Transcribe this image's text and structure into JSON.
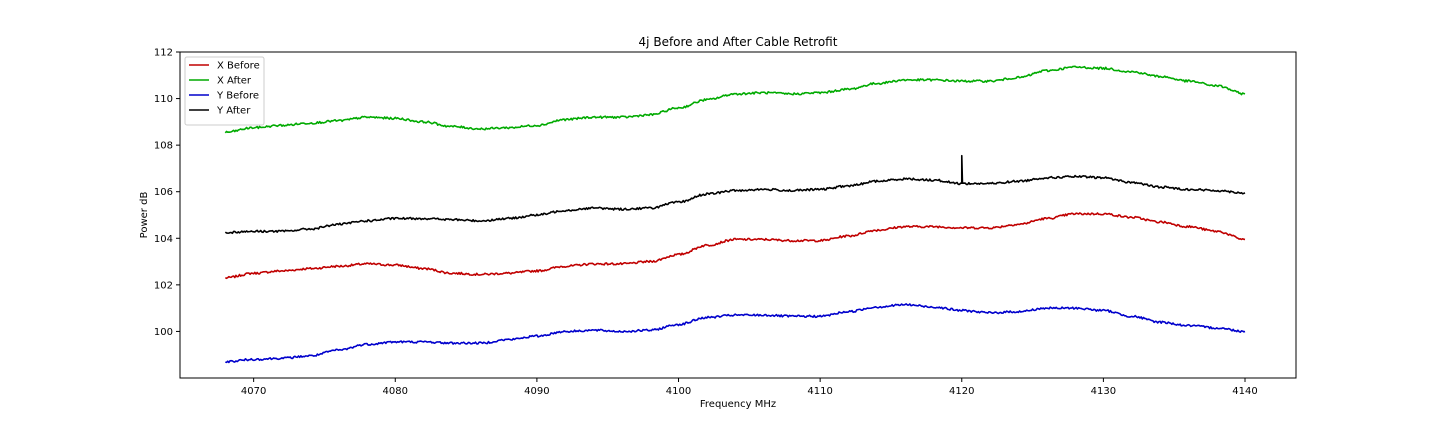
{
  "chart_data": {
    "type": "line",
    "title": "4j Before and After Cable Retrofit",
    "xlabel": "Frequency MHz",
    "ylabel": "Power dB",
    "xlim": [
      4064.8,
      4143.6
    ],
    "ylim": [
      98.0,
      112.0
    ],
    "xticks": [
      4070,
      4080,
      4090,
      4100,
      4110,
      4120,
      4130,
      4140
    ],
    "yticks": [
      100,
      102,
      104,
      106,
      108,
      110,
      112
    ],
    "grid": false,
    "legend_position": "top-left",
    "x": [
      4068,
      4070,
      4072,
      4074,
      4076,
      4078,
      4080,
      4082,
      4084,
      4086,
      4088,
      4090,
      4092,
      4094,
      4096,
      4098,
      4100,
      4102,
      4104,
      4106,
      4108,
      4110,
      4112,
      4114,
      4116,
      4118,
      4120,
      4122,
      4124,
      4126,
      4128,
      4130,
      4132,
      4134,
      4136,
      4138,
      4140
    ],
    "series": [
      {
        "name": "X Before",
        "color": "#c00000",
        "values": [
          102.3,
          102.5,
          102.6,
          102.7,
          102.8,
          102.9,
          102.85,
          102.7,
          102.5,
          102.45,
          102.5,
          102.6,
          102.8,
          102.9,
          102.9,
          103.0,
          103.3,
          103.7,
          103.95,
          103.95,
          103.9,
          103.9,
          104.1,
          104.35,
          104.5,
          104.5,
          104.45,
          104.45,
          104.6,
          104.85,
          105.05,
          105.05,
          104.9,
          104.7,
          104.5,
          104.3,
          103.95
        ]
      },
      {
        "name": "X After",
        "color": "#00aa00",
        "values": [
          108.55,
          108.75,
          108.85,
          108.95,
          109.05,
          109.2,
          109.15,
          109.0,
          108.8,
          108.7,
          108.75,
          108.85,
          109.1,
          109.2,
          109.2,
          109.3,
          109.6,
          109.95,
          110.2,
          110.25,
          110.2,
          110.25,
          110.4,
          110.65,
          110.8,
          110.8,
          110.75,
          110.75,
          110.9,
          111.2,
          111.35,
          111.3,
          111.15,
          110.95,
          110.75,
          110.55,
          110.2
        ]
      },
      {
        "name": "Y Before",
        "color": "#0000cc",
        "values": [
          98.7,
          98.8,
          98.85,
          98.95,
          99.2,
          99.45,
          99.55,
          99.55,
          99.5,
          99.5,
          99.65,
          99.8,
          100.0,
          100.05,
          100.0,
          100.05,
          100.3,
          100.6,
          100.7,
          100.7,
          100.65,
          100.65,
          100.85,
          101.05,
          101.15,
          101.05,
          100.9,
          100.8,
          100.85,
          101.0,
          101.0,
          100.9,
          100.65,
          100.4,
          100.25,
          100.15,
          100.0
        ]
      },
      {
        "name": "Y After",
        "color": "#000000",
        "values": [
          104.25,
          104.3,
          104.3,
          104.4,
          104.6,
          104.75,
          104.85,
          104.85,
          104.8,
          104.75,
          104.85,
          105.0,
          105.2,
          105.3,
          105.25,
          105.3,
          105.55,
          105.9,
          106.05,
          106.1,
          106.05,
          106.1,
          106.25,
          106.45,
          106.55,
          106.5,
          106.35,
          106.35,
          106.45,
          106.6,
          106.65,
          106.6,
          106.4,
          106.2,
          106.1,
          106.05,
          105.95
        ],
        "spike": {
          "x": 4120,
          "y": 107.55
        }
      }
    ]
  }
}
